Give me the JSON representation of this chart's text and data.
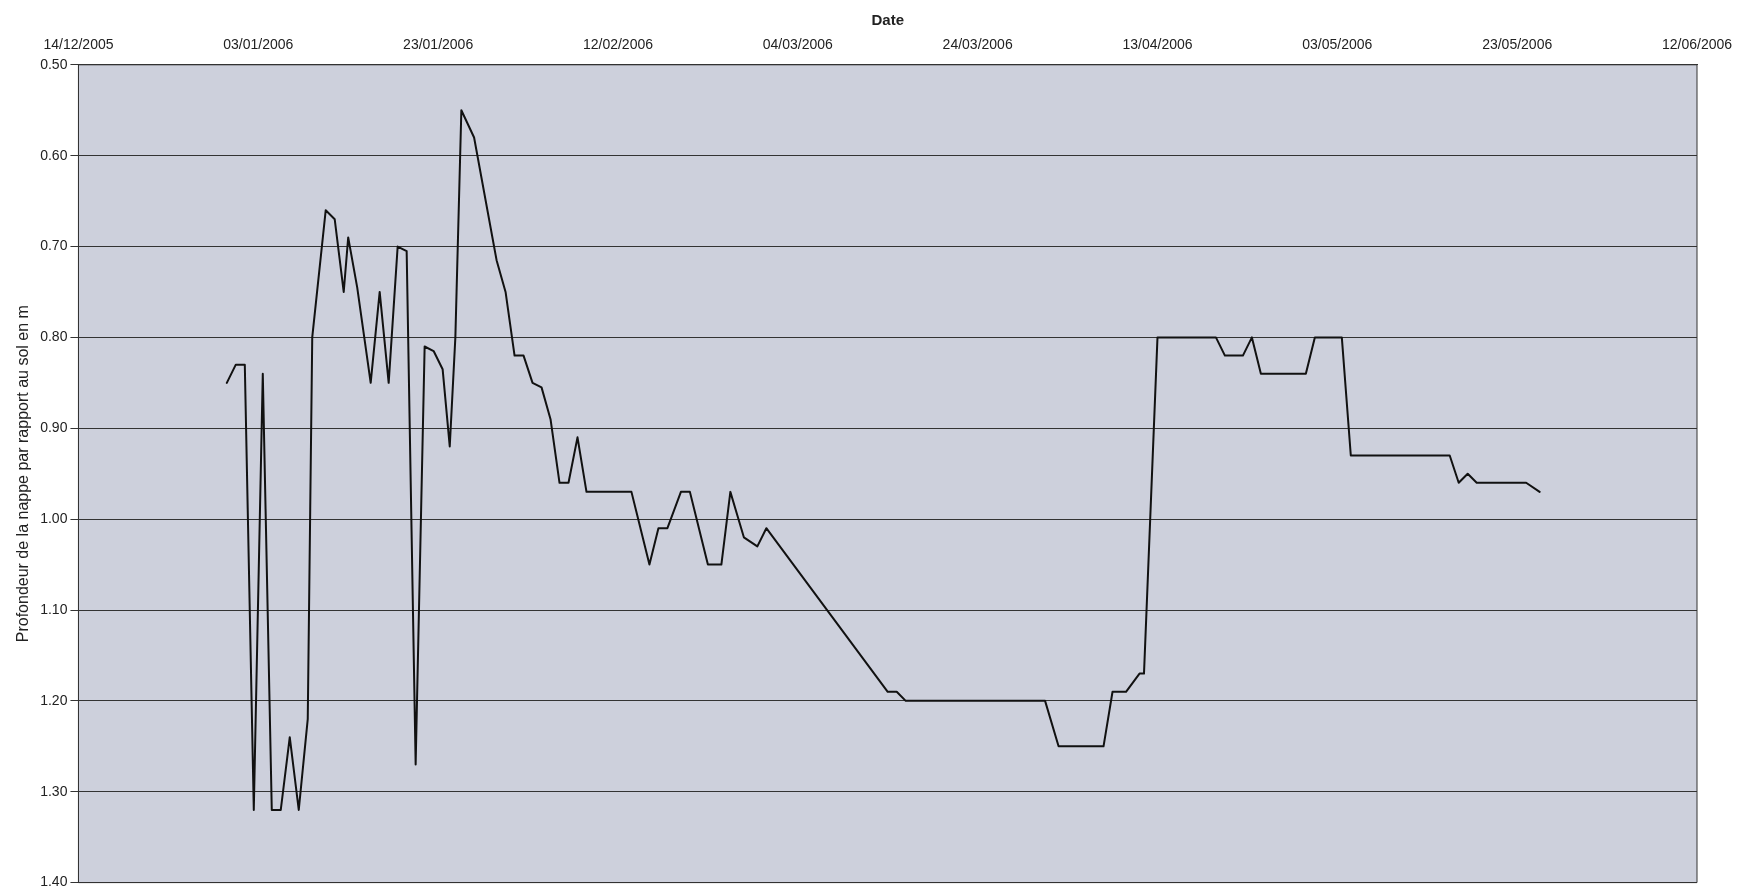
{
  "chart_data": {
    "type": "line",
    "xlabel": "Date",
    "ylabel": "Profondeur de la nappe par rapport au sol en m",
    "x": [
      "2005-12-30T12:00",
      "2005-12-31T12:00",
      "2006-01-01T12:00",
      "2006-01-02T12:00",
      "2006-01-03T12:00",
      "2006-01-04T12:00",
      "2006-01-05T12:00",
      "2006-01-06T12:00",
      "2006-01-07T12:00",
      "2006-01-08T12:00",
      "2006-01-09",
      "2006-01-10T12:00",
      "2006-01-11T12:00",
      "2006-01-12T12:00",
      "2006-01-13",
      "2006-01-14",
      "2006-01-15T12:00",
      "2006-01-16T12:00",
      "2006-01-17T12:00",
      "2006-01-18T12:00",
      "2006-01-19T12:00",
      "2006-01-20T12:00",
      "2006-01-21T12:00",
      "2006-01-22T12:00",
      "2006-01-23T12:00",
      "2006-01-24T07:00",
      "2006-01-24T22:00",
      "2006-01-25T14:00",
      "2006-01-27",
      "2006-01-29T12:00",
      "2006-01-30T12:00",
      "2006-01-31T12:00",
      "2006-02-01T12:00",
      "2006-02-02T12:00",
      "2006-02-03T12:00",
      "2006-02-04T12:00",
      "2006-02-05T12:00",
      "2006-02-06T12:00",
      "2006-02-07T12:00",
      "2006-02-08T12:00",
      "2006-02-13T12:00",
      "2006-02-15T12:00",
      "2006-02-16T12:00",
      "2006-02-17T12:00",
      "2006-02-19",
      "2006-02-20",
      "2006-02-22",
      "2006-02-23T12:00",
      "2006-02-24T12:00",
      "2006-02-26",
      "2006-02-27T12:00",
      "2006-02-28T12:00",
      "2006-03-14",
      "2006-03-15",
      "2006-03-16",
      "2006-03-31T12:00",
      "2006-04-02",
      "2006-04-07",
      "2006-04-08",
      "2006-04-09T12:00",
      "2006-04-11",
      "2006-04-11T12:00",
      "2006-04-13",
      "2006-04-19T12:00",
      "2006-04-20T12:00",
      "2006-04-22T12:00",
      "2006-04-23T12:00",
      "2006-04-24T12:00",
      "2006-04-29T12:00",
      "2006-04-30T12:00",
      "2006-05-03T12:00",
      "2006-05-04T12:00",
      "2006-05-15T12:00",
      "2006-05-16T12:00",
      "2006-05-17T12:00",
      "2006-05-18T12:00",
      "2006-05-24",
      "2006-05-25T12:00"
    ],
    "series": [
      {
        "color": "#111111",
        "values": [
          0.85,
          0.83,
          0.83,
          1.32,
          0.84,
          1.32,
          1.32,
          1.24,
          1.32,
          1.22,
          0.8,
          0.66,
          0.67,
          0.75,
          0.69,
          0.745,
          0.85,
          0.75,
          0.85,
          0.7,
          0.705,
          1.27,
          0.81,
          0.815,
          0.835,
          0.92,
          0.8,
          0.55,
          0.58,
          0.715,
          0.75,
          0.82,
          0.82,
          0.85,
          0.855,
          0.89,
          0.96,
          0.96,
          0.91,
          0.97,
          0.97,
          1.05,
          1.01,
          1.01,
          0.97,
          0.97,
          1.05,
          1.05,
          0.97,
          1.02,
          1.03,
          1.01,
          1.19,
          1.19,
          1.2,
          1.2,
          1.25,
          1.25,
          1.19,
          1.19,
          1.17,
          1.17,
          0.8,
          0.8,
          0.82,
          0.82,
          0.8,
          0.84,
          0.84,
          0.8,
          0.8,
          0.93,
          0.93,
          0.96,
          0.95,
          0.96,
          0.96,
          0.97
        ]
      }
    ],
    "xlim": [
      "2005-12-14",
      "2006-06-12"
    ],
    "xticks": [
      {
        "value": "2005-12-14",
        "label": "14/12/2005"
      },
      {
        "value": "2006-01-03",
        "label": "03/01/2006"
      },
      {
        "value": "2006-01-23",
        "label": "23/01/2006"
      },
      {
        "value": "2006-02-12",
        "label": "12/02/2006"
      },
      {
        "value": "2006-03-04",
        "label": "04/03/2006"
      },
      {
        "value": "2006-03-24",
        "label": "24/03/2006"
      },
      {
        "value": "2006-04-13",
        "label": "13/04/2006"
      },
      {
        "value": "2006-05-03",
        "label": "03/05/2006"
      },
      {
        "value": "2006-05-23",
        "label": "23/05/2006"
      },
      {
        "value": "2006-06-12",
        "label": "12/06/2006"
      }
    ],
    "ylim": [
      1.4,
      0.5
    ],
    "yticks": [
      {
        "value": 0.5,
        "label": "0.50"
      },
      {
        "value": 0.6,
        "label": "0.60"
      },
      {
        "value": 0.7,
        "label": "0.70"
      },
      {
        "value": 0.8,
        "label": "0.80"
      },
      {
        "value": 0.9,
        "label": "0.90"
      },
      {
        "value": 1.0,
        "label": "1.00"
      },
      {
        "value": 1.1,
        "label": "1.10"
      },
      {
        "value": 1.2,
        "label": "1.20"
      },
      {
        "value": 1.3,
        "label": "1.30"
      },
      {
        "value": 1.4,
        "label": "1.40"
      }
    ],
    "grid": "y",
    "legend": false,
    "marker": "none",
    "line_style": "solid"
  }
}
